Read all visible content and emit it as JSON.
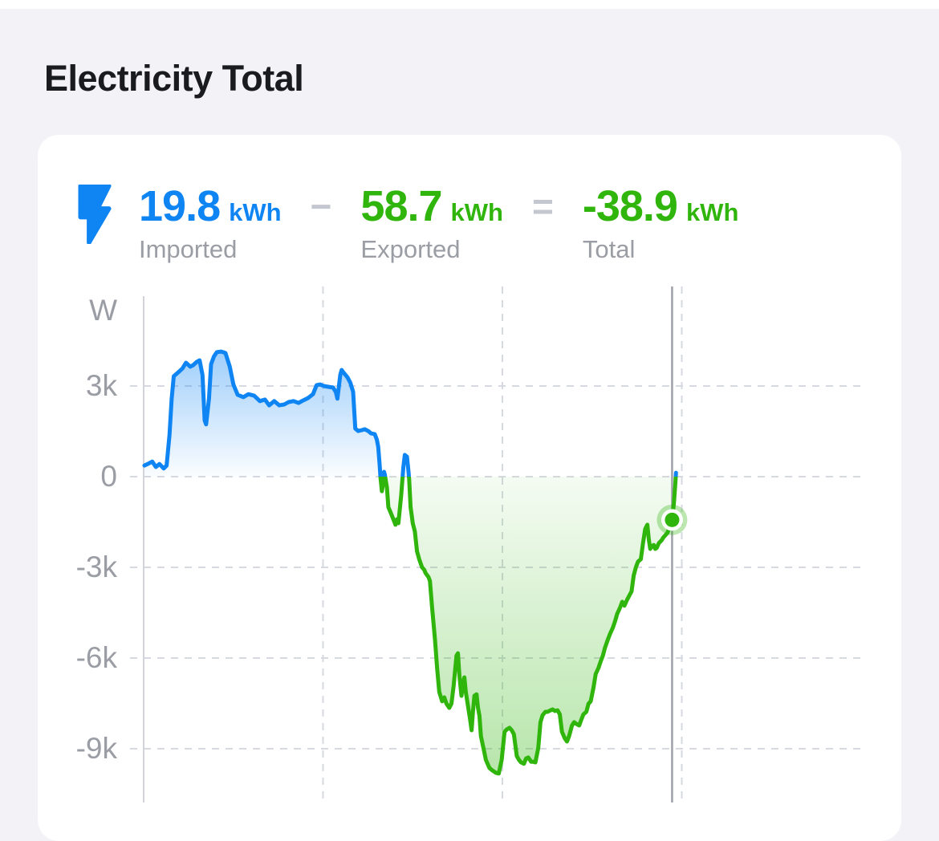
{
  "page": {
    "title": "Electricity Total"
  },
  "stats": {
    "imported": {
      "value": "19.8",
      "unit": "kWh",
      "label": "Imported"
    },
    "minus": "−",
    "exported": {
      "value": "58.7",
      "unit": "kWh",
      "label": "Exported"
    },
    "equals": "=",
    "total": {
      "value": "-38.9",
      "unit": "kWh",
      "label": "Total"
    }
  },
  "colors": {
    "page_bg": "#f2f2f7",
    "card_bg": "#ffffff",
    "title": "#1a1b1e",
    "blue": "#0f85f4",
    "green": "#2fb50c",
    "label_gray": "#9b9da5",
    "operator_gray": "#c4c7cf",
    "grid": "#d7d9e1",
    "axis": "#d2d4da",
    "cursor": "#9fa1a8"
  },
  "chart_data": {
    "type": "area",
    "title": "",
    "xlabel": "",
    "ylabel": "W",
    "unit_label": "W",
    "ylim": [
      -10800,
      6350
    ],
    "grid": true,
    "yticks": [
      {
        "label": "3k",
        "value": 3000
      },
      {
        "label": "0",
        "value": 0
      },
      {
        "label": "-3k",
        "value": -3000
      },
      {
        "label": "-6k",
        "value": -6000
      },
      {
        "label": "-9k",
        "value": -9000
      }
    ],
    "x_gridlines": [
      0.25,
      0.5,
      0.75
    ],
    "cursor": {
      "x": 0.7365,
      "value_w": -1430
    },
    "colors": {
      "positive": "#0f85f4",
      "negative": "#2fb50c"
    },
    "series": [
      {
        "name": "power",
        "points": [
          [
            0.001,
            370
          ],
          [
            0.008,
            450
          ],
          [
            0.012,
            500
          ],
          [
            0.017,
            320
          ],
          [
            0.022,
            420
          ],
          [
            0.028,
            270
          ],
          [
            0.032,
            370
          ],
          [
            0.036,
            1380
          ],
          [
            0.039,
            2580
          ],
          [
            0.042,
            3320
          ],
          [
            0.048,
            3450
          ],
          [
            0.054,
            3580
          ],
          [
            0.059,
            3770
          ],
          [
            0.065,
            3640
          ],
          [
            0.069,
            3690
          ],
          [
            0.074,
            3800
          ],
          [
            0.078,
            3850
          ],
          [
            0.082,
            3370
          ],
          [
            0.085,
            1860
          ],
          [
            0.087,
            1730
          ],
          [
            0.091,
            2580
          ],
          [
            0.094,
            3720
          ],
          [
            0.098,
            3980
          ],
          [
            0.102,
            4120
          ],
          [
            0.108,
            4140
          ],
          [
            0.114,
            4090
          ],
          [
            0.12,
            3640
          ],
          [
            0.125,
            3050
          ],
          [
            0.131,
            2710
          ],
          [
            0.139,
            2630
          ],
          [
            0.146,
            2730
          ],
          [
            0.154,
            2680
          ],
          [
            0.162,
            2500
          ],
          [
            0.169,
            2550
          ],
          [
            0.175,
            2360
          ],
          [
            0.182,
            2500
          ],
          [
            0.189,
            2360
          ],
          [
            0.196,
            2390
          ],
          [
            0.202,
            2470
          ],
          [
            0.209,
            2500
          ],
          [
            0.216,
            2440
          ],
          [
            0.222,
            2520
          ],
          [
            0.229,
            2600
          ],
          [
            0.236,
            2730
          ],
          [
            0.241,
            3030
          ],
          [
            0.246,
            3050
          ],
          [
            0.251,
            3000
          ],
          [
            0.258,
            2970
          ],
          [
            0.264,
            2950
          ],
          [
            0.268,
            2790
          ],
          [
            0.27,
            2580
          ],
          [
            0.274,
            3370
          ],
          [
            0.276,
            3530
          ],
          [
            0.279,
            3430
          ],
          [
            0.284,
            3290
          ],
          [
            0.288,
            3110
          ],
          [
            0.292,
            2810
          ],
          [
            0.295,
            1590
          ],
          [
            0.299,
            1510
          ],
          [
            0.304,
            1540
          ],
          [
            0.308,
            1570
          ],
          [
            0.313,
            1510
          ],
          [
            0.317,
            1430
          ],
          [
            0.322,
            1410
          ],
          [
            0.325,
            1220
          ],
          [
            0.327,
            980
          ],
          [
            0.329,
            370
          ],
          [
            0.33,
            0
          ],
          [
            0.332,
            -480
          ],
          [
            0.334,
            -210
          ],
          [
            0.335,
            160
          ],
          [
            0.336,
            80
          ],
          [
            0.339,
            -350
          ],
          [
            0.341,
            -1010
          ],
          [
            0.344,
            -1170
          ],
          [
            0.348,
            -1410
          ],
          [
            0.351,
            -1590
          ],
          [
            0.353,
            -1410
          ],
          [
            0.355,
            -1540
          ],
          [
            0.359,
            -610
          ],
          [
            0.362,
            320
          ],
          [
            0.364,
            720
          ],
          [
            0.367,
            660
          ],
          [
            0.369,
            190
          ],
          [
            0.37,
            -80
          ],
          [
            0.372,
            -1010
          ],
          [
            0.375,
            -1540
          ],
          [
            0.378,
            -1810
          ],
          [
            0.381,
            -2470
          ],
          [
            0.384,
            -2730
          ],
          [
            0.388,
            -3000
          ],
          [
            0.391,
            -3080
          ],
          [
            0.393,
            -3190
          ],
          [
            0.397,
            -3320
          ],
          [
            0.399,
            -3450
          ],
          [
            0.402,
            -4330
          ],
          [
            0.406,
            -5390
          ],
          [
            0.409,
            -6320
          ],
          [
            0.412,
            -7120
          ],
          [
            0.416,
            -7430
          ],
          [
            0.419,
            -7300
          ],
          [
            0.422,
            -7510
          ],
          [
            0.426,
            -7650
          ],
          [
            0.429,
            -7510
          ],
          [
            0.432,
            -6930
          ],
          [
            0.436,
            -5920
          ],
          [
            0.438,
            -5840
          ],
          [
            0.44,
            -6580
          ],
          [
            0.443,
            -7250
          ],
          [
            0.445,
            -6850
          ],
          [
            0.447,
            -6640
          ],
          [
            0.449,
            -7120
          ],
          [
            0.451,
            -7430
          ],
          [
            0.455,
            -8040
          ],
          [
            0.457,
            -8390
          ],
          [
            0.459,
            -7780
          ],
          [
            0.461,
            -7250
          ],
          [
            0.464,
            -7200
          ],
          [
            0.466,
            -7650
          ],
          [
            0.468,
            -7910
          ],
          [
            0.47,
            -8580
          ],
          [
            0.474,
            -9030
          ],
          [
            0.477,
            -9370
          ],
          [
            0.482,
            -9640
          ],
          [
            0.486,
            -9720
          ],
          [
            0.491,
            -9800
          ],
          [
            0.495,
            -9820
          ],
          [
            0.499,
            -9370
          ],
          [
            0.503,
            -8440
          ],
          [
            0.506,
            -8360
          ],
          [
            0.51,
            -8310
          ],
          [
            0.513,
            -8390
          ],
          [
            0.516,
            -8520
          ],
          [
            0.52,
            -9240
          ],
          [
            0.523,
            -9370
          ],
          [
            0.526,
            -9450
          ],
          [
            0.53,
            -9500
          ],
          [
            0.533,
            -9320
          ],
          [
            0.536,
            -9290
          ],
          [
            0.54,
            -9430
          ],
          [
            0.543,
            -9430
          ],
          [
            0.546,
            -9450
          ],
          [
            0.55,
            -8970
          ],
          [
            0.553,
            -8120
          ],
          [
            0.556,
            -7890
          ],
          [
            0.56,
            -7780
          ],
          [
            0.563,
            -7780
          ],
          [
            0.567,
            -7730
          ],
          [
            0.57,
            -7700
          ],
          [
            0.573,
            -7750
          ],
          [
            0.577,
            -7730
          ],
          [
            0.58,
            -7860
          ],
          [
            0.583,
            -8440
          ],
          [
            0.587,
            -8660
          ],
          [
            0.59,
            -8760
          ],
          [
            0.593,
            -8580
          ],
          [
            0.597,
            -8230
          ],
          [
            0.6,
            -8120
          ],
          [
            0.603,
            -8180
          ],
          [
            0.607,
            -8230
          ],
          [
            0.61,
            -8040
          ],
          [
            0.613,
            -7860
          ],
          [
            0.617,
            -7780
          ],
          [
            0.62,
            -7510
          ],
          [
            0.623,
            -7430
          ],
          [
            0.627,
            -6980
          ],
          [
            0.63,
            -6530
          ],
          [
            0.634,
            -6320
          ],
          [
            0.637,
            -6110
          ],
          [
            0.64,
            -5920
          ],
          [
            0.643,
            -5660
          ],
          [
            0.647,
            -5390
          ],
          [
            0.65,
            -5200
          ],
          [
            0.654,
            -4990
          ],
          [
            0.657,
            -4780
          ],
          [
            0.66,
            -4540
          ],
          [
            0.664,
            -4330
          ],
          [
            0.667,
            -4140
          ],
          [
            0.67,
            -4270
          ],
          [
            0.674,
            -4060
          ],
          [
            0.677,
            -3930
          ],
          [
            0.68,
            -3800
          ],
          [
            0.683,
            -3270
          ],
          [
            0.686,
            -3000
          ],
          [
            0.689,
            -2810
          ],
          [
            0.693,
            -2730
          ],
          [
            0.696,
            -2200
          ],
          [
            0.699,
            -1730
          ],
          [
            0.702,
            -1590
          ],
          [
            0.704,
            -2070
          ],
          [
            0.706,
            -2390
          ],
          [
            0.708,
            -2310
          ],
          [
            0.711,
            -2260
          ],
          [
            0.713,
            -2390
          ],
          [
            0.715,
            -2360
          ],
          [
            0.718,
            -2200
          ],
          [
            0.722,
            -2100
          ],
          [
            0.724,
            -2020
          ],
          [
            0.727,
            -1940
          ],
          [
            0.73,
            -1860
          ],
          [
            0.733,
            -1670
          ],
          [
            0.7365,
            -1430
          ],
          [
            0.739,
            -880
          ],
          [
            0.741,
            -210
          ],
          [
            0.742,
            130
          ]
        ]
      }
    ]
  }
}
